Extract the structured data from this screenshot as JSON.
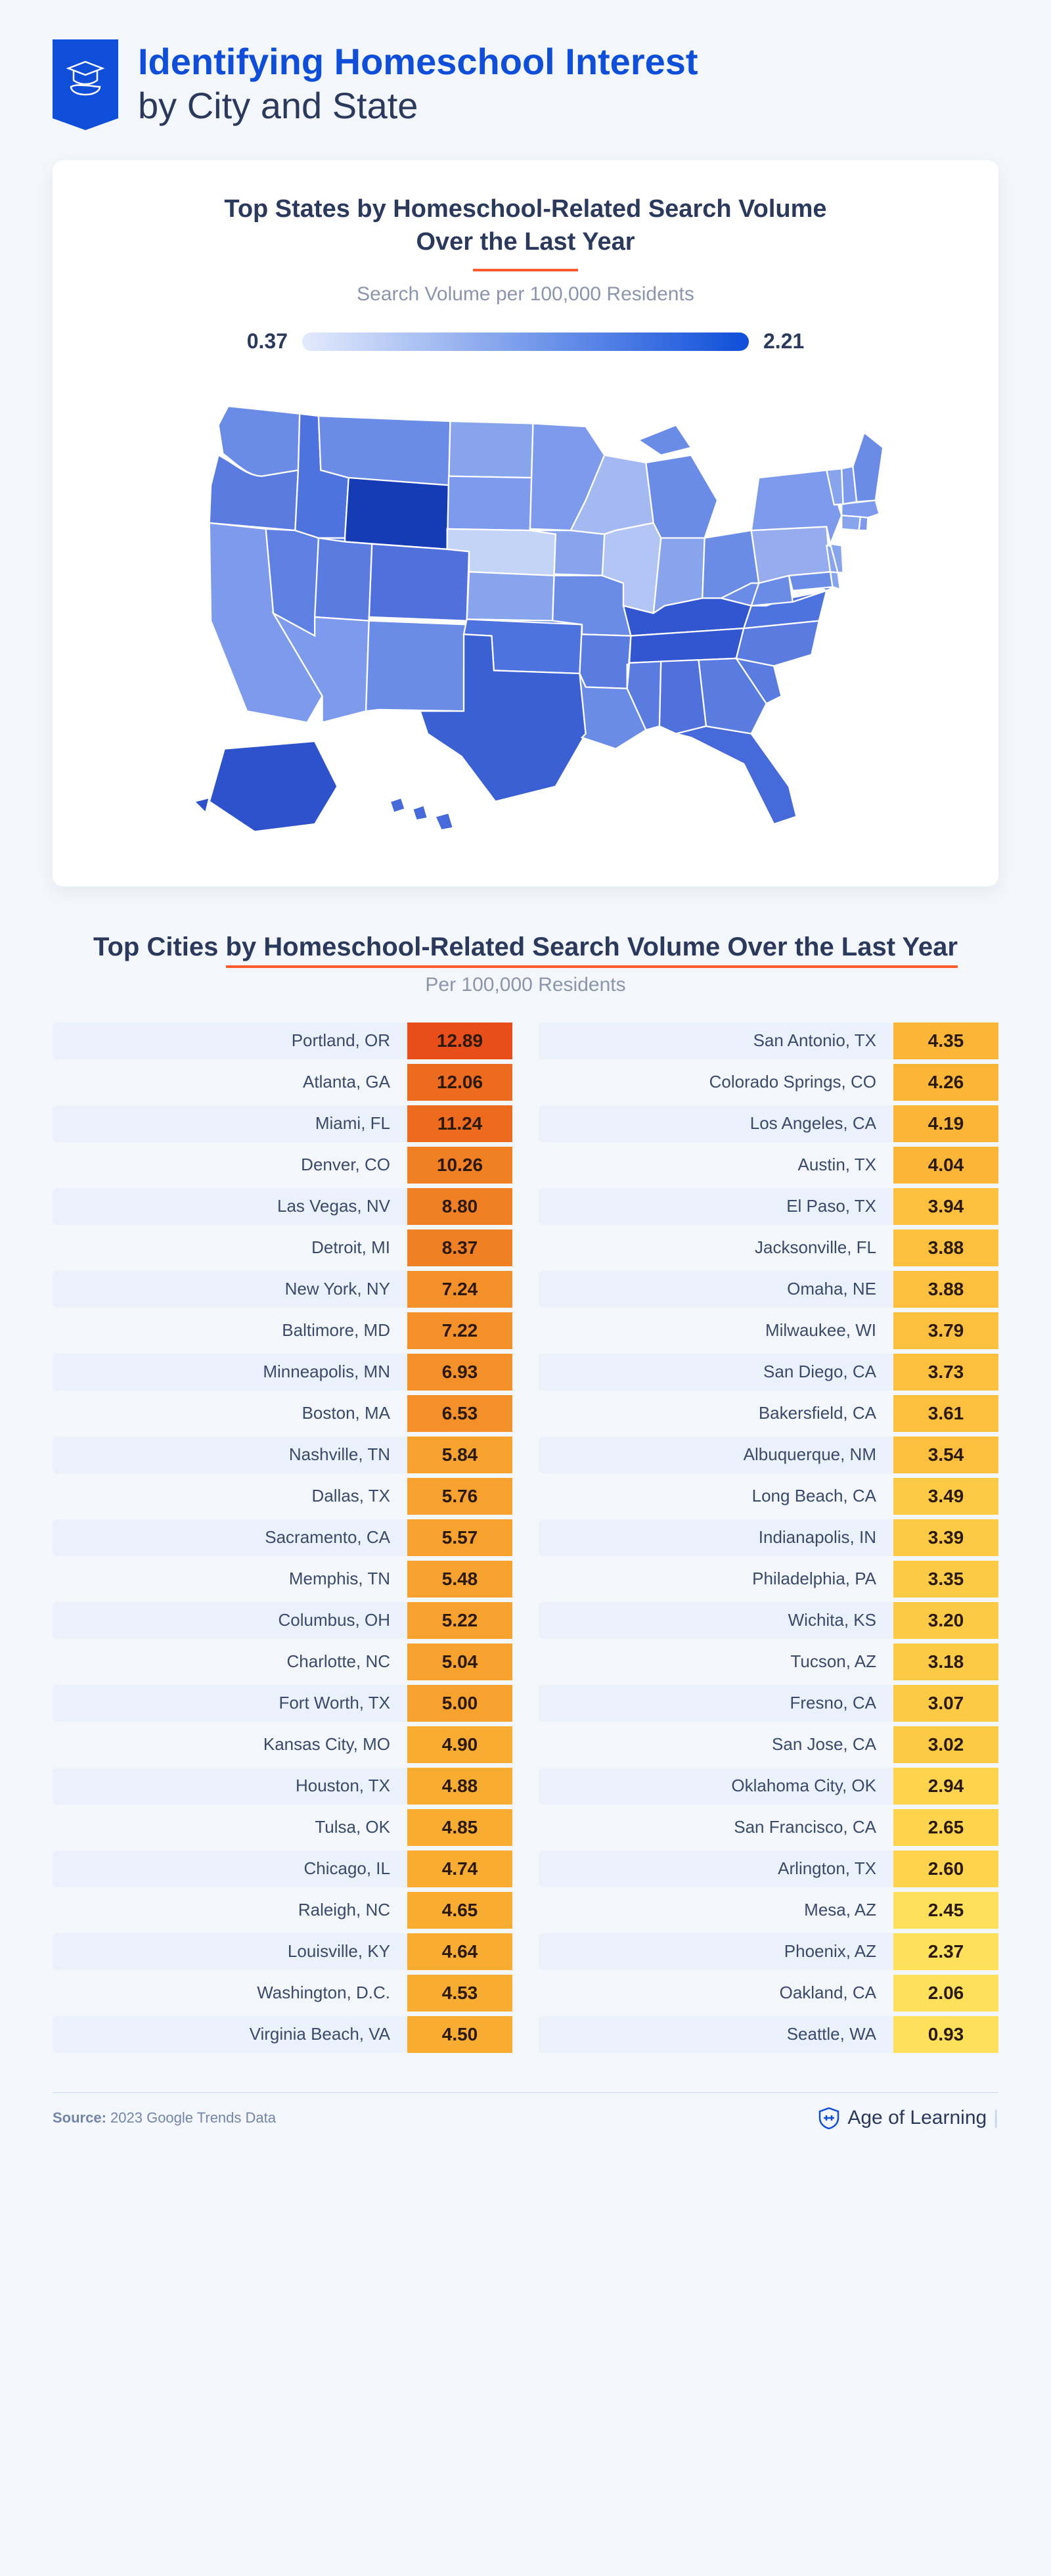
{
  "header": {
    "title_line1": "Identifying Homeschool Interest",
    "title_line2": "by City and State"
  },
  "map_section": {
    "title_l1": "Top States by Homeschool-Related Search Volume",
    "title_l2": "Over the Last Year",
    "subtitle": "Search Volume per 100,000 Residents",
    "scale_min": "0.37",
    "scale_max": "2.21",
    "gradient_from": "#e3eafd",
    "gradient_to": "#0e4ed9",
    "states": {
      "WA": "#6b8ce6",
      "OR": "#5a7be0",
      "CA": "#7d9aec",
      "NV": "#5e80e2",
      "ID": "#4e72de",
      "MT": "#6b8ce6",
      "WY": "#153bb5",
      "UT": "#5a7be0",
      "AZ": "#7d9aec",
      "CO": "#5070dc",
      "NM": "#6b8ce6",
      "ND": "#88a4ed",
      "SD": "#7d9aec",
      "NE": "#c4d4f6",
      "KS": "#88a4ed",
      "OK": "#4e72de",
      "TX": "#3b60d4",
      "MN": "#7d9aec",
      "IA": "#88a4ed",
      "MO": "#6b8ce6",
      "AR": "#5a7be0",
      "LA": "#6b8ce6",
      "WI": "#a4b9f1",
      "IL": "#b2c5f4",
      "MI": "#6b8ce6",
      "IN": "#88a4ed",
      "OH": "#6b8ce6",
      "KY": "#3156cf",
      "TN": "#3156cf",
      "MS": "#5a7be0",
      "AL": "#5070dc",
      "GA": "#5a7be0",
      "FL": "#466ad9",
      "SC": "#5a7be0",
      "NC": "#5a7be0",
      "VA": "#4e72de",
      "WV": "#6b8ce6",
      "MD": "#6b8ce6",
      "DE": "#88a4ed",
      "PA": "#96acee",
      "NJ": "#88a4ed",
      "NY": "#7d9aec",
      "CT": "#88a4ed",
      "RI": "#7d9aec",
      "MA": "#7d9aec",
      "VT": "#88a4ed",
      "NH": "#7d9aec",
      "ME": "#6b8ce6",
      "AK": "#2e52cc",
      "HI": "#466ad9"
    }
  },
  "cities_section": {
    "title_pre": "Top Cities ",
    "title_hi": "by Homeschool-Related Search Volume Over the Last Year",
    "subtitle": "Per 100,000 Residents",
    "color_stops": [
      {
        "v": 12.89,
        "c": "#e84e1a"
      },
      {
        "v": 11.0,
        "c": "#ed6b1f"
      },
      {
        "v": 8.0,
        "c": "#f17f24"
      },
      {
        "v": 6.5,
        "c": "#f49029"
      },
      {
        "v": 5.0,
        "c": "#f7a22e"
      },
      {
        "v": 4.5,
        "c": "#f9ac32"
      },
      {
        "v": 4.0,
        "c": "#fbb637"
      },
      {
        "v": 3.5,
        "c": "#fcc03e"
      },
      {
        "v": 3.0,
        "c": "#fdca45"
      },
      {
        "v": 2.5,
        "c": "#fed44e"
      },
      {
        "v": 0.93,
        "c": "#ffe05b"
      }
    ],
    "left": [
      {
        "city": "Portland, OR",
        "val": "12.89"
      },
      {
        "city": "Atlanta, GA",
        "val": "12.06"
      },
      {
        "city": "Miami, FL",
        "val": "11.24"
      },
      {
        "city": "Denver, CO",
        "val": "10.26"
      },
      {
        "city": "Las Vegas, NV",
        "val": "8.80"
      },
      {
        "city": "Detroit, MI",
        "val": "8.37"
      },
      {
        "city": "New York, NY",
        "val": "7.24"
      },
      {
        "city": "Baltimore, MD",
        "val": "7.22"
      },
      {
        "city": "Minneapolis, MN",
        "val": "6.93"
      },
      {
        "city": "Boston, MA",
        "val": "6.53"
      },
      {
        "city": "Nashville, TN",
        "val": "5.84"
      },
      {
        "city": "Dallas, TX",
        "val": "5.76"
      },
      {
        "city": "Sacramento, CA",
        "val": "5.57"
      },
      {
        "city": "Memphis, TN",
        "val": "5.48"
      },
      {
        "city": "Columbus, OH",
        "val": "5.22"
      },
      {
        "city": "Charlotte, NC",
        "val": "5.04"
      },
      {
        "city": "Fort Worth, TX",
        "val": "5.00"
      },
      {
        "city": "Kansas City, MO",
        "val": "4.90"
      },
      {
        "city": "Houston, TX",
        "val": "4.88"
      },
      {
        "city": "Tulsa, OK",
        "val": "4.85"
      },
      {
        "city": "Chicago, IL",
        "val": "4.74"
      },
      {
        "city": "Raleigh, NC",
        "val": "4.65"
      },
      {
        "city": "Louisville, KY",
        "val": "4.64"
      },
      {
        "city": "Washington, D.C.",
        "val": "4.53"
      },
      {
        "city": "Virginia Beach, VA",
        "val": "4.50"
      }
    ],
    "right": [
      {
        "city": "San Antonio, TX",
        "val": "4.35"
      },
      {
        "city": "Colorado Springs, CO",
        "val": "4.26"
      },
      {
        "city": "Los Angeles, CA",
        "val": "4.19"
      },
      {
        "city": "Austin, TX",
        "val": "4.04"
      },
      {
        "city": "El Paso, TX",
        "val": "3.94"
      },
      {
        "city": "Jacksonville, FL",
        "val": "3.88"
      },
      {
        "city": "Omaha, NE",
        "val": "3.88"
      },
      {
        "city": "Milwaukee, WI",
        "val": "3.79"
      },
      {
        "city": "San Diego, CA",
        "val": "3.73"
      },
      {
        "city": "Bakersfield, CA",
        "val": "3.61"
      },
      {
        "city": "Albuquerque, NM",
        "val": "3.54"
      },
      {
        "city": "Long Beach, CA",
        "val": "3.49"
      },
      {
        "city": "Indianapolis, IN",
        "val": "3.39"
      },
      {
        "city": "Philadelphia, PA",
        "val": "3.35"
      },
      {
        "city": "Wichita, KS",
        "val": "3.20"
      },
      {
        "city": "Tucson, AZ",
        "val": "3.18"
      },
      {
        "city": "Fresno, CA",
        "val": "3.07"
      },
      {
        "city": "San Jose, CA",
        "val": "3.02"
      },
      {
        "city": "Oklahoma City, OK",
        "val": "2.94"
      },
      {
        "city": "San Francisco, CA",
        "val": "2.65"
      },
      {
        "city": "Arlington, TX",
        "val": "2.60"
      },
      {
        "city": "Mesa, AZ",
        "val": "2.45"
      },
      {
        "city": "Phoenix, AZ",
        "val": "2.37"
      },
      {
        "city": "Oakland, CA",
        "val": "2.06"
      },
      {
        "city": "Seattle, WA",
        "val": "0.93"
      }
    ]
  },
  "footer": {
    "source_label": "Source:",
    "source_value": " 2023 Google Trends Data",
    "logo_text": "Age of Learning"
  }
}
